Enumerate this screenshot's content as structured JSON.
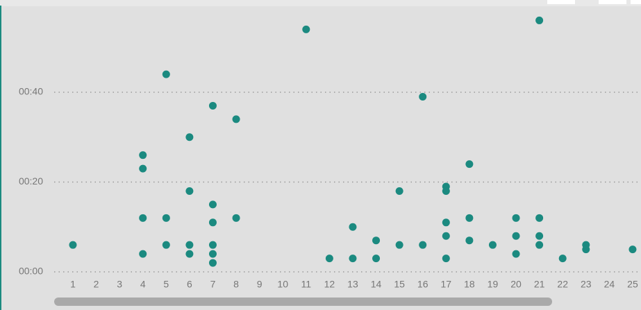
{
  "chart_data": {
    "type": "scatter",
    "color": "#1b8a80",
    "x": [
      1,
      4,
      4,
      4,
      4,
      5,
      5,
      5,
      6,
      6,
      6,
      6,
      7,
      7,
      7,
      7,
      7,
      7,
      8,
      8,
      11,
      12,
      13,
      13,
      14,
      14,
      15,
      15,
      16,
      16,
      17,
      17,
      17,
      17,
      17,
      18,
      18,
      18,
      19,
      20,
      20,
      20,
      21,
      21,
      21,
      21,
      22,
      23,
      23,
      25
    ],
    "values": [
      6,
      26,
      23,
      12,
      4,
      44,
      12,
      6,
      30,
      18,
      6,
      4,
      37,
      15,
      11,
      6,
      4,
      2,
      34,
      12,
      54,
      3,
      10,
      3,
      7,
      3,
      18,
      6,
      39,
      6,
      19,
      18,
      11,
      8,
      3,
      24,
      12,
      7,
      6,
      12,
      8,
      4,
      56,
      12,
      8,
      6,
      3,
      6,
      5,
      5
    ],
    "xlim": [
      0,
      25.35
    ],
    "xticks": [
      1,
      2,
      3,
      4,
      5,
      6,
      7,
      8,
      9,
      10,
      11,
      12,
      13,
      14,
      15,
      16,
      17,
      18,
      19,
      20,
      21,
      22,
      23,
      24,
      25
    ],
    "ylim": [
      -1,
      59
    ],
    "yticks": [
      {
        "value": 0,
        "label": "00:00"
      },
      {
        "value": 20,
        "label": "00:20"
      },
      {
        "value": 40,
        "label": "00:40"
      }
    ],
    "grid": true
  }
}
